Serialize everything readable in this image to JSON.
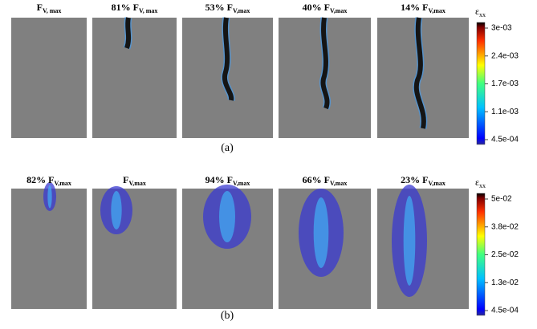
{
  "figure": {
    "rows": [
      {
        "panels": [
          {
            "subscript": "V, max",
            "symbol": "F"
          },
          {
            "pct": "81%",
            "symbol": "F",
            "subscript": "V, max"
          },
          {
            "pct": "53%",
            "symbol": "F",
            "subscript": "V,max"
          },
          {
            "pct": "40%",
            "symbol": "F",
            "subscript": "V,max"
          },
          {
            "pct": "14%",
            "symbol": "F",
            "subscript": "V,max"
          }
        ],
        "colorbar": {
          "symbol": "ε",
          "subscript": "xx",
          "ticks": [
            "3e-03",
            "2.4e-03",
            "1.7e-03",
            "1.1e-03",
            "4.5e-04"
          ]
        },
        "caption": "(a)"
      },
      {
        "panels": [
          {
            "pct": "82%",
            "symbol": "F",
            "subscript": "V,max"
          },
          {
            "symbol": "F",
            "subscript": "V,max"
          },
          {
            "pct": "94%",
            "symbol": "F",
            "subscript": "V,max"
          },
          {
            "pct": "66%",
            "symbol": "F",
            "subscript": "V,max"
          },
          {
            "pct": "23%",
            "symbol": "F",
            "subscript": "V,max"
          }
        ],
        "colorbar": {
          "symbol": "ε",
          "subscript": "xx",
          "ticks": [
            "5e-02",
            "3.8e-02",
            "2.5e-02",
            "1.3e-02",
            "4.5e-04"
          ]
        },
        "caption": "(b)"
      }
    ]
  }
}
